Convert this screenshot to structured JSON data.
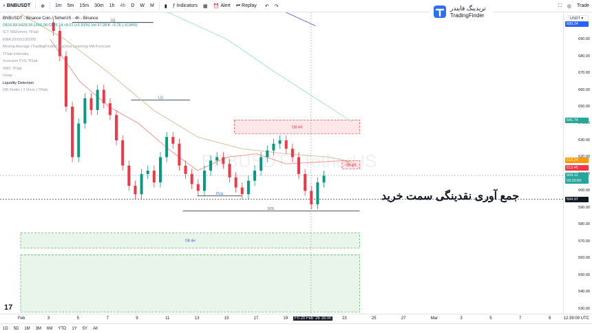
{
  "toolbar": {
    "symbol": "BNBUSDT",
    "timeframes": [
      "1m",
      "5m",
      "15m",
      "30m",
      "1h",
      "4h",
      "D",
      "W",
      "M"
    ],
    "indicators": "Indicators",
    "alert": "Alert",
    "replay": "Replay",
    "trade": "Trade"
  },
  "legend": {
    "title": "BNBUSDT - Binance Coin / TetherUS - 4h - Binance",
    "ohlc": "O616.83 H628.26 L616.08 C626.14 +9.21 (+1.51%) Vol 37.28 K −5.76 (−0.94%)",
    "items": [
      "ICT XRZommy TFlab",
      "EMA 20/50/100/200",
      "Moving Average (TradingFinder) Machine Learning MA Forecast",
      "TFlab Ichimoku",
      "Inversion FVG TFlab",
      "SMC TFlab",
      "Vwap",
      "Liquidity Detection",
      "OB Finder | 3 Drive | TFlab"
    ]
  },
  "logo": {
    "fa": "تریدینگ فایندر",
    "en": "TradingFinder"
  },
  "annotation": "جمع آوری نقدینگی سمت خرید",
  "price_tags": [
    {
      "label": "699.24",
      "price": 699.24,
      "color": "#2962ff"
    },
    {
      "label": "641.74",
      "price": 641.74,
      "color": "#26a69a"
    },
    {
      "label": "618.24",
      "price": 618.24,
      "color": "#ff9800"
    },
    {
      "label": "613.45",
      "price": 613.45,
      "color": "#f23645"
    },
    {
      "label": "609.12",
      "price": 609.12,
      "color": "#26a69a"
    },
    {
      "label": "03:20:50",
      "price": 605.8,
      "color": "#26a69a"
    },
    {
      "label": "594.97",
      "price": 594.97,
      "color": "#131722"
    }
  ],
  "chart_data": {
    "type": "candlestick",
    "title": "BNBUSDT - Binance Coin / TetherUS - 4h - Binance",
    "ylim": [
      527,
      706
    ],
    "y_ticks": [
      690,
      680,
      670,
      660,
      650,
      640,
      630,
      620,
      610,
      600,
      590,
      580,
      570,
      560,
      550,
      540,
      530
    ],
    "x_ticks": [
      {
        "label": "Feb",
        "x": 0
      },
      {
        "label": "3",
        "x": 2
      },
      {
        "label": "5",
        "x": 4
      },
      {
        "label": "7",
        "x": 6
      },
      {
        "label": "9",
        "x": 8
      },
      {
        "label": "11",
        "x": 10
      },
      {
        "label": "13",
        "x": 12
      },
      {
        "label": "15",
        "x": 14
      },
      {
        "label": "17",
        "x": 16
      },
      {
        "label": "19",
        "x": 18
      },
      {
        "label": "Fri 20 Feb '26 16:00",
        "x": 19.7
      },
      {
        "label": "23",
        "x": 22
      },
      {
        "label": "25",
        "x": 24
      },
      {
        "label": "27",
        "x": 26
      },
      {
        "label": "Mar",
        "x": 28
      },
      {
        "label": "3",
        "x": 30
      },
      {
        "label": "5",
        "x": 32
      },
      {
        "label": "7",
        "x": 34
      },
      {
        "label": "9",
        "x": 36
      }
    ],
    "zones": [
      {
        "label": "OB 4H",
        "x0": 14.5,
        "x1": 23,
        "y0": 634,
        "y1": 642,
        "color": "#f23645"
      },
      {
        "label": "OB 4H",
        "x0": 21.8,
        "x1": 23,
        "y0": 613,
        "y1": 618,
        "color": "#f23645"
      },
      {
        "label": "OB 4H",
        "x0": 0,
        "x1": 23,
        "y0": 566,
        "y1": 575,
        "color": "#4caf50"
      },
      {
        "label": "",
        "x0": 0,
        "x1": 23,
        "y0": 528,
        "y1": 562,
        "color": "#4caf50"
      }
    ],
    "levels": [
      {
        "label": "LQ",
        "x0": 3.5,
        "x1": 9,
        "y": 700
      },
      {
        "label": "LQ",
        "x0": 7.5,
        "x1": 11.5,
        "y": 654
      },
      {
        "label": "DOL",
        "x0": 11,
        "x1": 23,
        "y": 588
      },
      {
        "label": "DLiq",
        "x0": 12,
        "x1": 15,
        "y": 597
      }
    ]
  },
  "timeaxis_right": "12:39:09 UTC",
  "bottom": {
    "ranges": [
      "1D",
      "5D",
      "1M",
      "3M",
      "6M",
      "YTD",
      "1Y",
      "5Y",
      "All"
    ]
  }
}
